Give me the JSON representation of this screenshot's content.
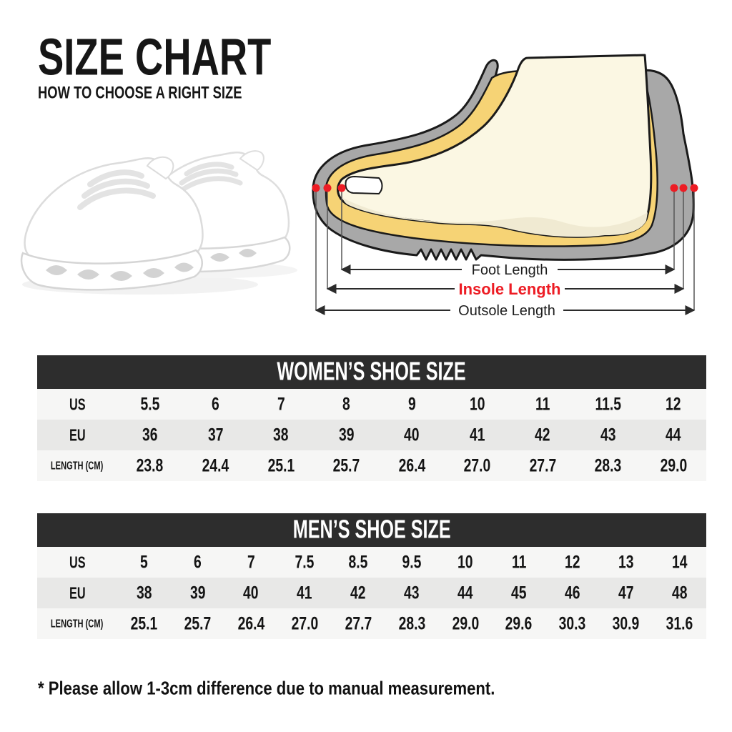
{
  "page": {
    "title": "SIZE CHART",
    "subtitle": "HOW TO CHOOSE A RIGHT SIZE",
    "footnote": "* Please allow 1-3cm difference due to manual measurement."
  },
  "diagram": {
    "labels": {
      "foot_length": "Foot Length",
      "insole_length": "Insole Length",
      "outsole_length": "Outsole Length"
    },
    "colors": {
      "accent_red": "#ED1C24",
      "shoe_gray": "#A8A8A8",
      "insole_yellow": "#F6D375",
      "foot_cream": "#FBF7E3",
      "foot_shade": "#F0EAD2",
      "outline": "#1A1A1A",
      "measure_line": "#2B2B2B",
      "label_text": "#1C1C1C"
    }
  },
  "tables": {
    "header_bg": "#2D2D2D",
    "women": {
      "title": "WOMEN’S SHOE SIZE",
      "rows": [
        {
          "label": "US",
          "values": [
            "5.5",
            "6",
            "7",
            "8",
            "9",
            "10",
            "11",
            "11.5",
            "12"
          ]
        },
        {
          "label": "EU",
          "values": [
            "36",
            "37",
            "38",
            "39",
            "40",
            "41",
            "42",
            "43",
            "44"
          ]
        },
        {
          "label": "LENGTH (CM)",
          "values": [
            "23.8",
            "24.4",
            "25.1",
            "25.7",
            "26.4",
            "27.0",
            "27.7",
            "28.3",
            "29.0"
          ]
        }
      ]
    },
    "men": {
      "title": "MEN’S SHOE SIZE",
      "rows": [
        {
          "label": "US",
          "values": [
            "5",
            "6",
            "7",
            "7.5",
            "8.5",
            "9.5",
            "10",
            "11",
            "12",
            "13",
            "14"
          ]
        },
        {
          "label": "EU",
          "values": [
            "38",
            "39",
            "40",
            "41",
            "42",
            "43",
            "44",
            "45",
            "46",
            "47",
            "48"
          ]
        },
        {
          "label": "LENGTH (CM)",
          "values": [
            "25.1",
            "25.7",
            "26.4",
            "27.0",
            "27.7",
            "28.3",
            "29.0",
            "29.6",
            "30.3",
            "30.9",
            "31.6"
          ]
        }
      ]
    }
  }
}
